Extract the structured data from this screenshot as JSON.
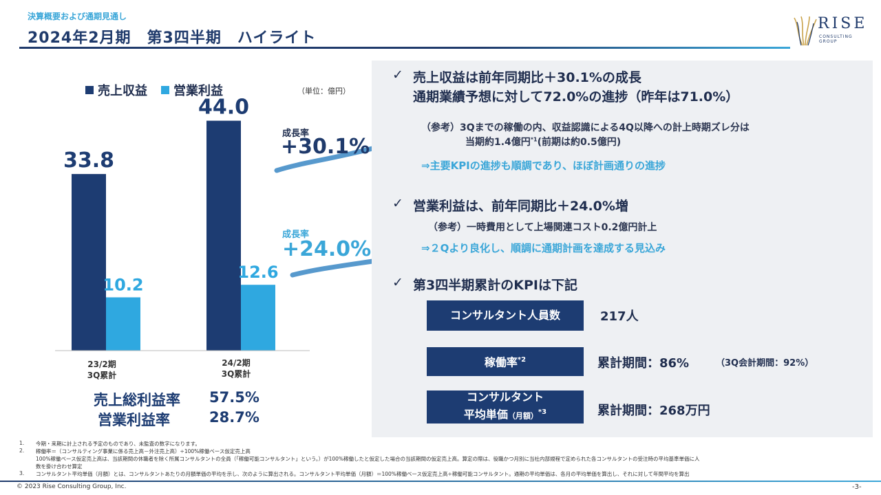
{
  "header": {
    "subtitle": "決算概要および通期見通し",
    "title": "2024年2月期　第3四半期　ハイライト",
    "logo_text": "RISE",
    "logo_sub": "CONSULTING\nGROUP"
  },
  "chart_data": {
    "type": "bar",
    "categories": [
      "23/2期\n3Q累計",
      "24/2期\n3Q累計"
    ],
    "series": [
      {
        "name": "売上収益",
        "values": [
          33.8,
          44.0
        ],
        "color": "#1d3c72"
      },
      {
        "name": "営業利益",
        "values": [
          10.2,
          12.6
        ],
        "color": "#2fa8e0"
      }
    ],
    "unit_label": "（単位：億円）",
    "growth": [
      {
        "label": "成長率",
        "value": "+30.1%"
      },
      {
        "label": "成長率",
        "value": "+24.0%"
      }
    ],
    "legend": "top",
    "ylim": [
      0,
      50
    ]
  },
  "margins": [
    {
      "label": "売上総利益率",
      "value": "57.5%"
    },
    {
      "label": "営業利益率",
      "value": "28.7%"
    }
  ],
  "highlights": {
    "revenue": {
      "line1": "売上収益は前年同期比＋30.1%の成長",
      "line2": "通期業績予想に対して72.0%の進捗（昨年は71.0%）",
      "ref1": "（参考）3Qまでの稼働の内、収益認識による4Q以降への計上時期ズレ分は",
      "ref2a": "当期約1.4億円",
      "ref2sup": "*1",
      "ref2b": "(前期は約0.5億円)",
      "note": "⇒主要KPIの進捗も順調であり、ほぼ計画通りの進捗"
    },
    "op": {
      "line1": "営業利益は、前年同期比＋24.0%増",
      "ref": "（参考）一時費用として上場関連コスト0.2億円計上",
      "note": "⇒２Qより良化し、順調に通期計画を達成する見込み"
    },
    "kpi": {
      "heading": "第3四半期累計のKPIは下記",
      "items": [
        {
          "label": "コンサルタント人員数",
          "value": "217人",
          "extra": ""
        },
        {
          "label": "稼働率",
          "sup": "*2",
          "value": "累計期間：86%",
          "extra": "（3Q会計期間：92%）"
        },
        {
          "label1": "コンサルタント",
          "label2": "平均単価",
          "label2small": "（月額）",
          "sup": "*3",
          "value": "累計期間：268万円"
        }
      ]
    },
    "check": "✓"
  },
  "footnotes": [
    {
      "num": "1.",
      "text": "今期・来期に計上される予定のものであり、未監査の数字になります。"
    },
    {
      "num": "2.",
      "text": "稼働率＝（コンサルティング事業に係る売上高－外注売上高）÷100%稼働ベース仮定売上高"
    },
    {
      "num": "",
      "text": "100%稼働ベース仮定売上高は、当該期間の休職者を除く所属コンサルタントの全員（「稼働可能コンサルタント」という。）が100%稼働したと仮定した場合の当該期間の仮定売上高。算定の際は、役職かつ月別に当社内部規程で定められた各コンサルタントの受注時の平均基準単価に人"
    },
    {
      "num": "",
      "text": "数を掛け合わせ算定"
    },
    {
      "num": "3.",
      "text": "コンサルタント平均単価（月額）とは、コンサルタントあたりの月額単価の平均を示し、次のように算出される。コンサルタント平均単価（月額）＝100%稼働ベース仮定売上高÷稼働可能コンサルタント。通期の平均単価は、各月の平均単価を算出し、それに対して年間平均を算出"
    }
  ],
  "footer": {
    "copyright": "© 2023 Rise Consulting Group, Inc.",
    "page": "-3-"
  }
}
